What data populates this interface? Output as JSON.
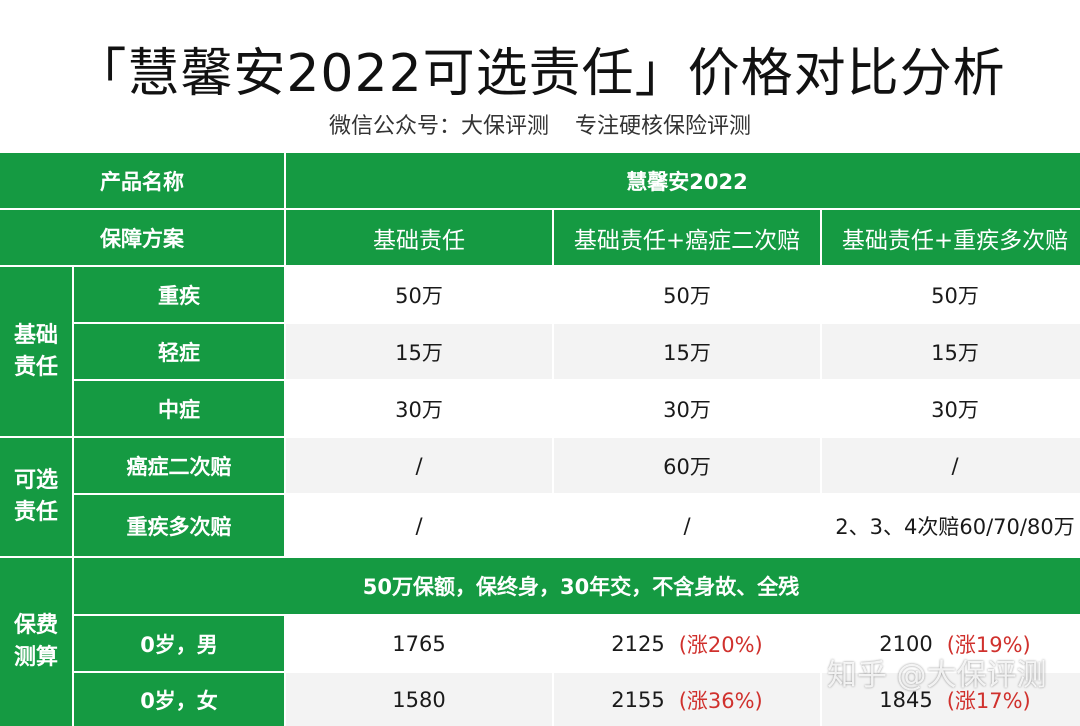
{
  "title": "「慧馨安2022可选责任」价格对比分析",
  "subtitle": {
    "wechat": "微信公众号：大保评测",
    "slogan": "专注硬核保险评测"
  },
  "table": {
    "product_label": "产品名称",
    "product_name": "慧馨安2022",
    "plan_label": "保障方案",
    "plans": [
      "基础责任",
      "基础责任+癌症二次赔",
      "基础责任+重疾多次赔"
    ],
    "groups": {
      "basic": "基础责任",
      "optional": "可选责任",
      "premium": "保费测算"
    },
    "rows": [
      {
        "label": "重疾",
        "values": [
          "50万",
          "50万",
          "50万"
        ]
      },
      {
        "label": "轻症",
        "values": [
          "15万",
          "15万",
          "15万"
        ]
      },
      {
        "label": "中症",
        "values": [
          "30万",
          "30万",
          "30万"
        ]
      },
      {
        "label": "癌症二次赔",
        "values": [
          "/",
          "60万",
          "/"
        ]
      },
      {
        "label": "重疾多次赔",
        "values": [
          "/",
          "/",
          "2、3、4次赔60/70/80万"
        ]
      }
    ],
    "premium_note": "50万保额，保终身，30年交，不含身故、全残",
    "premium_rows": [
      {
        "label": "0岁，男",
        "values": [
          "1765",
          "2125",
          "2100"
        ],
        "increases": [
          "",
          "(涨20%)",
          "(涨19%)"
        ]
      },
      {
        "label": "0岁，女",
        "values": [
          "1580",
          "2155",
          "1845"
        ],
        "increases": [
          "",
          "(涨36%)",
          "(涨17%)"
        ]
      }
    ]
  },
  "watermark": "知乎 @大保评测",
  "colors": {
    "header_green": "#159a42",
    "increase_red": "#d0312d",
    "row_alt": "#f3f3f3"
  }
}
